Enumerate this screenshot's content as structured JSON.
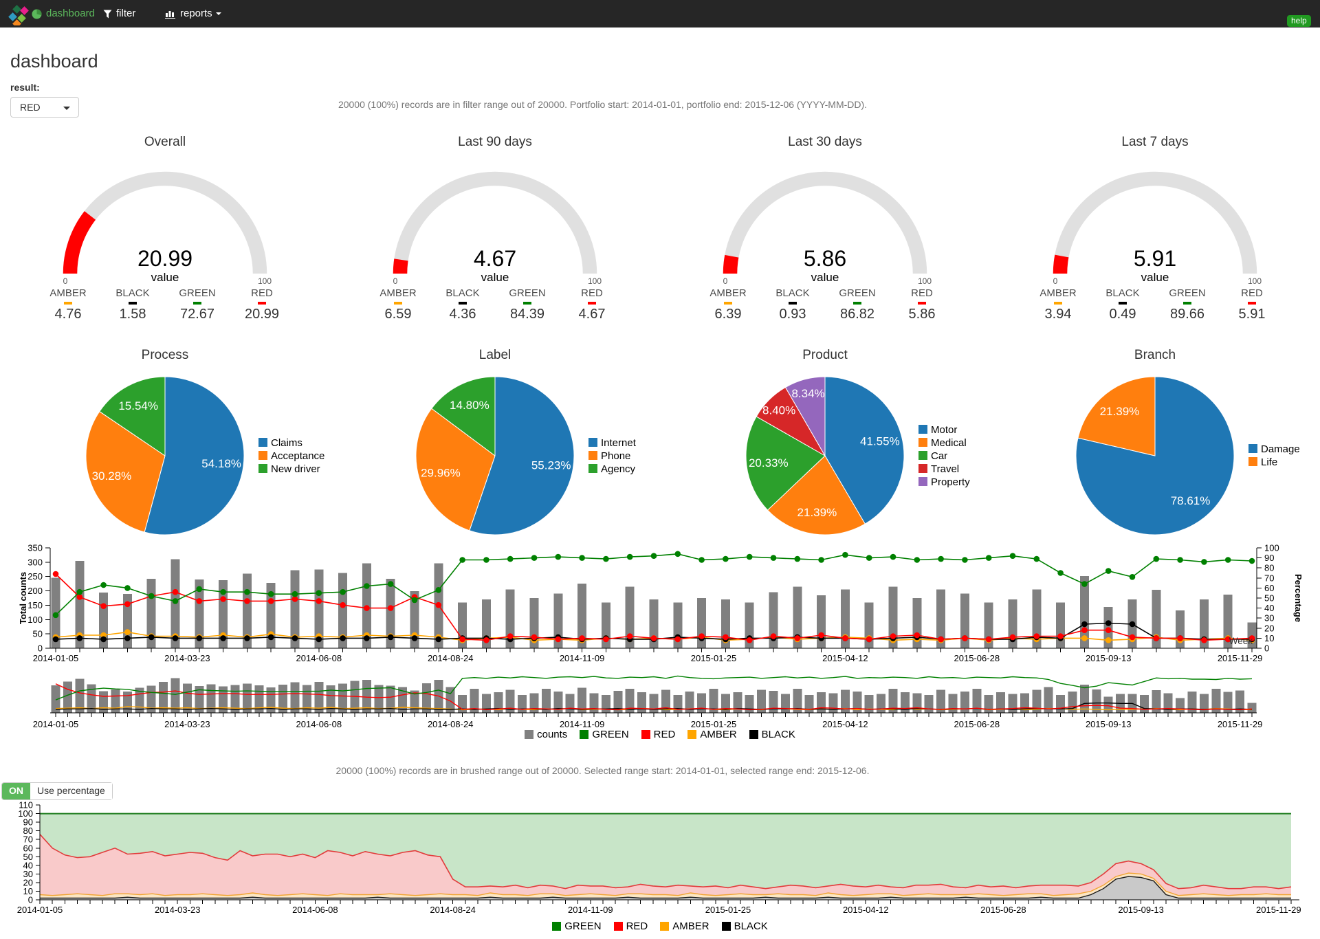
{
  "navbar": {
    "brand": "dashboard",
    "filter_label": "filter",
    "reports_label": "reports",
    "help_label": "help"
  },
  "page": {
    "title": "dashboard",
    "result_label": "result:",
    "result_value": "RED",
    "filter_info": "20000 (100%) records are in filter range out of 20000. Portfolio start: 2014-01-01, portfolio end: 2015-12-06 (YYYY-MM-DD).",
    "brush_info": "20000 (100%) records are in brushed range out of 20000. Selected range start: 2014-01-01, selected range end: 2015-12-06.",
    "toggle_on": "ON",
    "toggle_label": "Use percentage"
  },
  "colors": {
    "blue": "#1f77b4",
    "orange": "#ff7f0e",
    "pie_green": "#2ca02c",
    "pie_red": "#d62728",
    "purple": "#9467bd",
    "green": "#008000",
    "red": "#ff0000",
    "amber": "#ffa500",
    "black": "#000000",
    "bar_gray": "#808080",
    "gauge_bg": "#e0e0e0",
    "gauge_fg": "#ff0000",
    "area_green_fill": "#c8e5c8",
    "area_green_line": "#1e7d1e",
    "area_red_fill": "#f9caca",
    "area_red_line": "#e23b3b",
    "area_amber_fill": "#fce6c4",
    "area_amber_line": "#f0a330",
    "area_black_fill": "#c9c9c9",
    "area_black_line": "#1a1a1a"
  },
  "chart_data": {
    "gauges": [
      {
        "type": "gauge",
        "title": "Overall",
        "value": 20.99,
        "value_label": "value",
        "min": 0,
        "max": 100,
        "legend": [
          {
            "label": "AMBER",
            "color": "#ffa500",
            "value": "4.76"
          },
          {
            "label": "BLACK",
            "color": "#000000",
            "value": "1.58"
          },
          {
            "label": "GREEN",
            "color": "#008000",
            "value": "72.67"
          },
          {
            "label": "RED",
            "color": "#ff0000",
            "value": "20.99"
          }
        ]
      },
      {
        "type": "gauge",
        "title": "Last 90 days",
        "value": 4.67,
        "value_label": "value",
        "min": 0,
        "max": 100,
        "legend": [
          {
            "label": "AMBER",
            "color": "#ffa500",
            "value": "6.59"
          },
          {
            "label": "BLACK",
            "color": "#000000",
            "value": "4.36"
          },
          {
            "label": "GREEN",
            "color": "#008000",
            "value": "84.39"
          },
          {
            "label": "RED",
            "color": "#ff0000",
            "value": "4.67"
          }
        ]
      },
      {
        "type": "gauge",
        "title": "Last 30 days",
        "value": 5.86,
        "value_label": "value",
        "min": 0,
        "max": 100,
        "legend": [
          {
            "label": "AMBER",
            "color": "#ffa500",
            "value": "6.39"
          },
          {
            "label": "BLACK",
            "color": "#000000",
            "value": "0.93"
          },
          {
            "label": "GREEN",
            "color": "#008000",
            "value": "86.82"
          },
          {
            "label": "RED",
            "color": "#ff0000",
            "value": "5.86"
          }
        ]
      },
      {
        "type": "gauge",
        "title": "Last 7 days",
        "value": 5.91,
        "value_label": "value",
        "min": 0,
        "max": 100,
        "legend": [
          {
            "label": "AMBER",
            "color": "#ffa500",
            "value": "3.94"
          },
          {
            "label": "BLACK",
            "color": "#000000",
            "value": "0.49"
          },
          {
            "label": "GREEN",
            "color": "#008000",
            "value": "89.66"
          },
          {
            "label": "RED",
            "color": "#ff0000",
            "value": "5.91"
          }
        ]
      }
    ],
    "pies": [
      {
        "type": "pie",
        "title": "Process",
        "slices": [
          {
            "label": "Claims",
            "value": 54.18,
            "text": "54.18%",
            "color": "#1f77b4"
          },
          {
            "label": "Acceptance",
            "value": 30.28,
            "text": "30.28%",
            "color": "#ff7f0e"
          },
          {
            "label": "New driver",
            "value": 15.54,
            "text": "15.54%",
            "color": "#2ca02c"
          }
        ]
      },
      {
        "type": "pie",
        "title": "Label",
        "slices": [
          {
            "label": "Internet",
            "value": 55.23,
            "text": "55.23%",
            "color": "#1f77b4"
          },
          {
            "label": "Phone",
            "value": 29.96,
            "text": "29.96%",
            "color": "#ff7f0e"
          },
          {
            "label": "Agency",
            "value": 14.8,
            "text": "14.80%",
            "color": "#2ca02c"
          }
        ]
      },
      {
        "type": "pie",
        "title": "Product",
        "slices": [
          {
            "label": "Motor",
            "value": 41.55,
            "text": "41.55%",
            "color": "#1f77b4"
          },
          {
            "label": "Medical",
            "value": 21.39,
            "text": "21.39%",
            "color": "#ff7f0e"
          },
          {
            "label": "Car",
            "value": 20.33,
            "text": "20.33%",
            "color": "#2ca02c"
          },
          {
            "label": "Travel",
            "value": 8.4,
            "text": "8.40%",
            "color": "#d62728"
          },
          {
            "label": "Property",
            "value": 8.34,
            "text": "8.34%",
            "color": "#9467bd"
          }
        ]
      },
      {
        "type": "pie",
        "title": "Branch",
        "slices": [
          {
            "label": "Damage",
            "value": 78.61,
            "text": "78.61%",
            "color": "#1f77b4"
          },
          {
            "label": "Life",
            "value": 21.39,
            "text": "21.39%",
            "color": "#ff7f0e"
          }
        ]
      }
    ],
    "timeline": {
      "type": "bar+line",
      "ylabel_left": "Total counts",
      "ylabel_right": "Percentage",
      "xlabel": "Week",
      "ylim_left": [
        0,
        350
      ],
      "ylim_right": [
        0,
        100
      ],
      "tick_labels": [
        "2014-01-05",
        "2014-03-23",
        "2014-06-08",
        "2014-08-24",
        "2014-11-09",
        "2015-01-25",
        "2015-04-12",
        "2015-06-28",
        "2015-09-13",
        "2015-11-29"
      ],
      "counts": [
        246,
        280,
        305,
        255,
        194,
        210,
        189,
        225,
        242,
        275,
        310,
        260,
        240,
        255,
        237,
        248,
        260,
        245,
        228,
        252,
        272,
        250,
        275,
        245,
        262,
        285,
        296,
        250,
        242,
        230,
        199,
        265,
        296,
        230,
        160,
        215,
        170,
        185,
        205,
        160,
        175,
        215,
        190,
        170,
        225,
        175,
        160,
        195,
        215,
        185,
        170,
        205,
        160,
        190,
        175,
        215,
        170,
        185,
        160,
        205,
        195,
        170,
        215,
        160,
        185,
        175,
        205,
        190,
        160,
        170,
        215,
        185,
        175,
        160,
        205,
        170,
        190,
        215,
        160,
        185,
        170,
        175,
        205,
        230,
        160,
        190,
        252,
        208,
        144,
        168,
        170,
        160,
        204,
        175,
        132,
        190,
        170,
        215,
        187,
        199,
        90
      ],
      "series": {
        "GREEN": [
          33,
          45,
          56,
          60,
          63,
          61,
          60,
          55,
          52,
          50,
          47,
          53,
          59,
          57,
          56,
          55,
          56,
          55,
          54,
          54,
          54,
          55,
          55,
          58,
          56,
          59,
          62,
          63,
          64,
          56,
          48,
          52,
          58,
          49,
          88,
          90,
          88,
          91,
          89,
          92,
          90,
          88,
          91,
          92,
          90,
          93,
          89,
          88,
          91,
          90,
          92,
          88,
          94,
          90,
          88,
          87,
          89,
          90,
          91,
          88,
          90,
          92,
          89,
          91,
          88,
          90,
          93,
          88,
          90,
          89,
          91,
          90,
          88,
          92,
          89,
          90,
          88,
          91,
          90,
          89,
          92,
          90,
          89,
          85,
          75,
          70,
          64,
          68,
          77,
          74,
          71,
          80,
          89,
          87,
          88,
          86,
          86,
          85,
          88,
          86,
          87
        ],
        "RED": [
          74,
          60,
          51,
          46,
          42,
          43,
          44,
          48,
          52,
          53,
          56,
          50,
          47,
          48,
          49,
          49,
          47,
          47,
          47,
          48,
          49,
          48,
          47,
          44,
          43,
          42,
          40,
          39,
          40,
          46,
          51,
          49,
          43,
          30,
          9,
          11,
          8,
          10,
          12,
          9,
          11,
          10,
          9,
          12,
          10,
          11,
          9,
          8,
          12,
          11,
          10,
          13,
          9,
          10,
          12,
          9,
          11,
          10,
          8,
          9,
          12,
          11,
          10,
          9,
          13,
          12,
          10,
          11,
          9,
          10,
          12,
          11,
          13,
          10,
          9,
          11,
          10,
          12,
          9,
          10,
          11,
          13,
          12,
          10,
          12,
          16,
          18,
          19,
          18,
          12,
          11,
          9,
          10,
          11,
          10,
          9,
          8,
          10,
          9,
          8,
          10
        ],
        "AMBER": [
          11,
          12,
          13,
          11,
          13,
          12,
          16,
          15,
          12,
          13,
          12,
          13,
          11,
          12,
          13,
          12,
          11,
          13,
          14,
          12,
          11,
          13,
          12,
          14,
          11,
          12,
          13,
          11,
          12,
          14,
          13,
          12,
          11,
          10,
          8,
          9,
          10,
          8,
          11,
          9,
          8,
          10,
          9,
          11,
          8,
          9,
          10,
          8,
          9,
          11,
          10,
          8,
          9,
          10,
          11,
          9,
          8,
          10,
          9,
          8,
          11,
          10,
          9,
          8,
          10,
          9,
          11,
          8,
          10,
          9,
          8,
          11,
          9,
          10,
          8,
          9,
          10,
          11,
          8,
          9,
          10,
          8,
          9,
          11,
          10,
          9,
          10,
          9,
          8,
          9,
          9,
          10,
          11,
          9,
          8,
          10,
          9,
          11,
          10,
          9,
          8
        ],
        "BLACK": [
          9,
          10,
          10,
          11,
          9,
          10,
          10,
          9,
          11,
          10,
          10,
          9,
          10,
          11,
          10,
          9,
          10,
          10,
          11,
          9,
          10,
          10,
          9,
          11,
          10,
          9,
          10,
          10,
          11,
          9,
          10,
          10,
          9,
          9,
          10,
          9,
          10,
          11,
          9,
          10,
          10,
          9,
          11,
          10,
          9,
          10,
          10,
          11,
          9,
          10,
          9,
          10,
          11,
          9,
          10,
          10,
          9,
          11,
          10,
          9,
          10,
          10,
          11,
          9,
          10,
          9,
          10,
          11,
          9,
          10,
          10,
          9,
          11,
          10,
          9,
          10,
          10,
          11,
          9,
          10,
          9,
          10,
          11,
          10,
          10,
          11,
          24,
          25,
          25,
          24,
          24,
          11,
          10,
          9,
          10,
          10,
          9,
          10,
          9,
          10,
          9
        ]
      },
      "legend": [
        {
          "label": "counts",
          "color": "#808080"
        },
        {
          "label": "GREEN",
          "color": "#008000"
        },
        {
          "label": "RED",
          "color": "#ff0000"
        },
        {
          "label": "AMBER",
          "color": "#ffa500"
        },
        {
          "label": "BLACK",
          "color": "#000000"
        }
      ]
    },
    "area": {
      "type": "stacked-area",
      "ylim": [
        0,
        110
      ],
      "green_top": 100,
      "tick_labels": [
        "2014-01-05",
        "2014-03-23",
        "2014-06-08",
        "2014-08-24",
        "2014-11-09",
        "2015-01-25",
        "2015-04-12",
        "2015-06-28",
        "2015-09-13",
        "2015-11-29"
      ],
      "stack": {
        "BLACK": [
          2,
          2,
          2,
          2,
          2,
          2,
          2,
          3,
          2,
          2,
          2,
          2,
          2,
          2,
          2,
          2,
          2,
          3,
          2,
          2,
          2,
          2,
          2,
          2,
          2,
          2,
          2,
          3,
          2,
          2,
          2,
          2,
          2,
          2,
          2,
          2,
          3,
          2,
          2,
          2,
          2,
          3,
          2,
          2,
          2,
          2,
          2,
          3,
          2,
          2,
          2,
          2,
          3,
          2,
          2,
          2,
          2,
          2,
          3,
          2,
          2,
          2,
          2,
          3,
          2,
          2,
          2,
          2,
          3,
          2,
          2,
          2,
          2,
          2,
          3,
          2,
          2,
          2,
          2,
          2,
          3,
          2,
          2,
          2,
          6,
          13,
          24,
          27,
          26,
          22,
          6,
          2,
          2,
          2,
          2,
          2,
          2,
          2,
          2,
          2,
          2
        ],
        "AMBER": [
          4,
          3,
          4,
          5,
          4,
          3,
          5,
          4,
          4,
          5,
          3,
          4,
          4,
          5,
          4,
          3,
          4,
          5,
          4,
          3,
          4,
          5,
          4,
          3,
          5,
          4,
          4,
          3,
          5,
          4,
          3,
          4,
          5,
          4,
          4,
          3,
          5,
          4,
          4,
          3,
          5,
          4,
          3,
          4,
          5,
          4,
          3,
          4,
          5,
          4,
          4,
          3,
          5,
          4,
          3,
          4,
          5,
          4,
          3,
          5,
          4,
          4,
          3,
          5,
          4,
          3,
          4,
          5,
          4,
          3,
          4,
          5,
          4,
          4,
          3,
          5,
          4,
          3,
          4,
          5,
          4,
          3,
          4,
          5,
          4,
          4,
          3,
          4,
          4,
          3,
          4,
          3,
          4,
          5,
          4,
          3,
          4,
          4,
          5,
          4,
          4
        ],
        "RED": [
          70,
          55,
          46,
          42,
          44,
          50,
          53,
          46,
          48,
          49,
          46,
          47,
          49,
          47,
          43,
          41,
          51,
          43,
          47,
          48,
          44,
          46,
          43,
          52,
          48,
          45,
          50,
          47,
          44,
          49,
          52,
          46,
          43,
          18,
          9,
          10,
          8,
          9,
          11,
          9,
          10,
          9,
          8,
          11,
          9,
          10,
          9,
          8,
          11,
          10,
          9,
          12,
          8,
          9,
          11,
          8,
          10,
          9,
          7,
          8,
          11,
          10,
          9,
          8,
          12,
          11,
          9,
          10,
          8,
          9,
          11,
          10,
          12,
          9,
          8,
          10,
          9,
          11,
          8,
          9,
          10,
          12,
          11,
          9,
          10,
          13,
          15,
          14,
          12,
          10,
          9,
          8,
          8,
          10,
          9,
          8,
          7,
          9,
          8,
          7,
          9
        ]
      },
      "legend": [
        {
          "label": "GREEN",
          "color": "#008000"
        },
        {
          "label": "RED",
          "color": "#ff0000"
        },
        {
          "label": "AMBER",
          "color": "#ffa500"
        },
        {
          "label": "BLACK",
          "color": "#000000"
        }
      ]
    }
  }
}
